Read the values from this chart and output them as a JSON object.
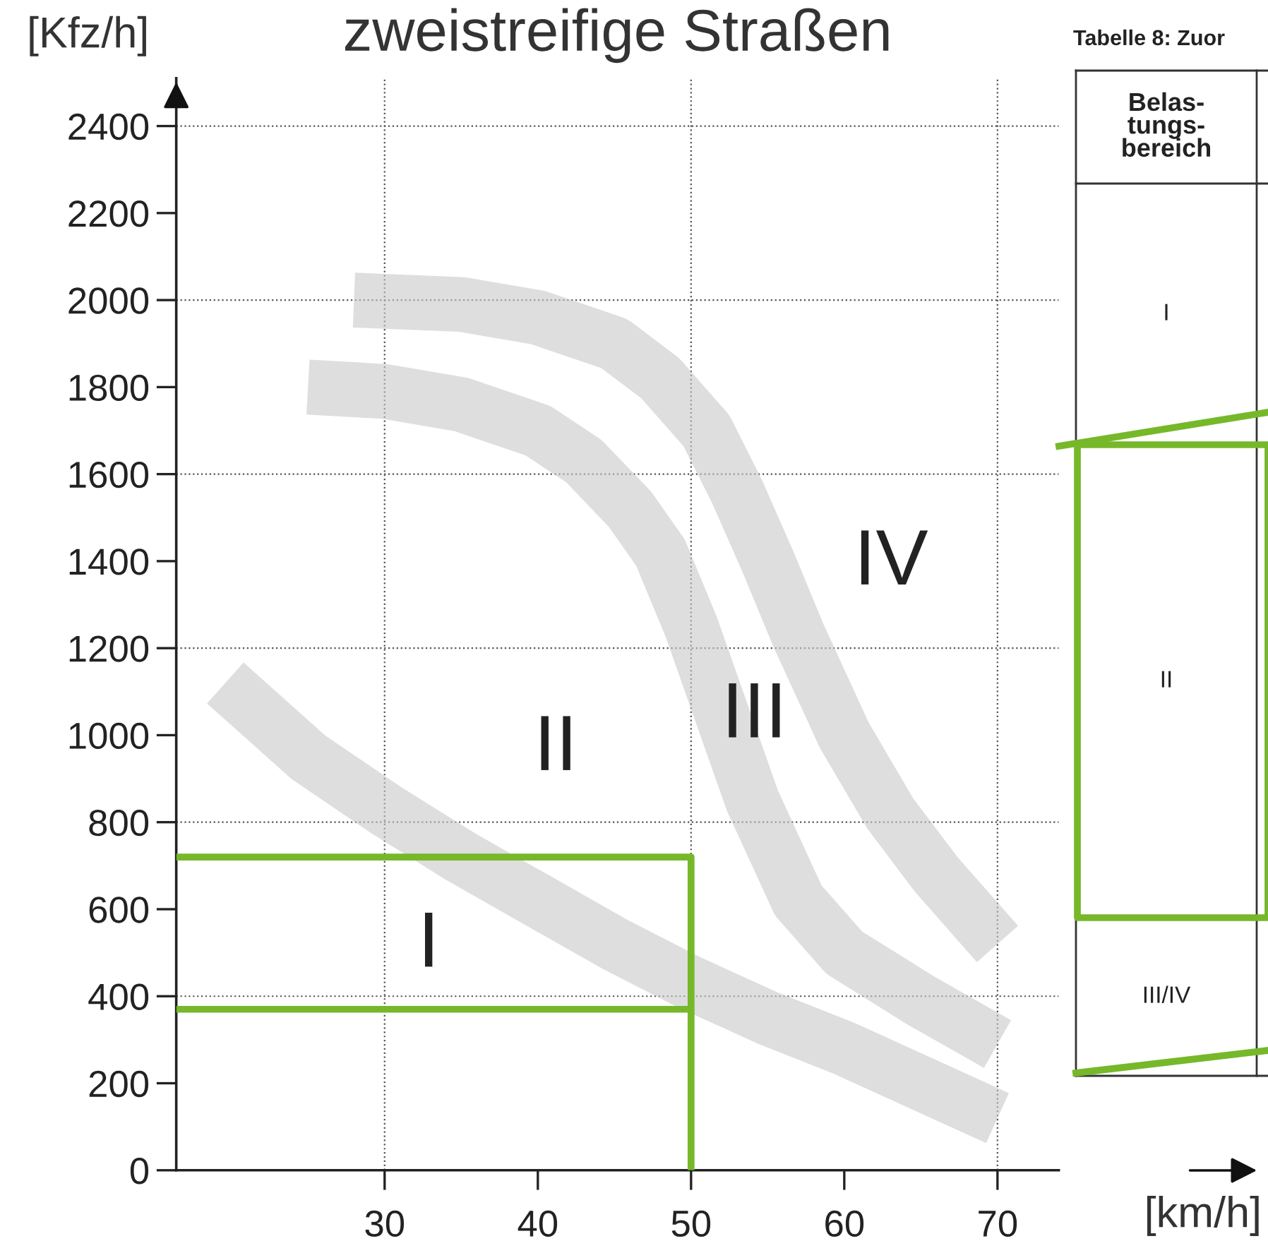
{
  "chart_data": {
    "type": "line",
    "title": "zweistreifige Straßen",
    "xlabel": "[km/h]",
    "ylabel": "[Kfz/h]",
    "xlim": [
      16.4,
      74
    ],
    "ylim": [
      0,
      2510
    ],
    "xticks": [
      30,
      40,
      50,
      60,
      70
    ],
    "yticks": [
      0,
      200,
      400,
      600,
      800,
      1000,
      1200,
      1400,
      1600,
      1800,
      2000,
      2200,
      2400
    ],
    "grid": false,
    "legend": false,
    "series": [
      {
        "color": "#c8c8c8",
        "x": [
          19.6,
          25,
          30,
          35,
          40,
          45,
          50,
          55,
          60,
          65,
          70
        ],
        "values": [
          1120,
          950,
          830,
          720,
          620,
          520,
          430,
          350,
          280,
          200,
          120
        ]
      },
      {
        "color": "#c8c8c8",
        "x": [
          25,
          30,
          35,
          40,
          43,
          46,
          48,
          50,
          52,
          54,
          57,
          60,
          65,
          70
        ],
        "values": [
          1800,
          1790,
          1760,
          1700,
          1630,
          1520,
          1420,
          1250,
          1050,
          850,
          620,
          500,
          390,
          290
        ]
      },
      {
        "color": "#c8c8c8",
        "x": [
          28,
          35,
          40,
          45,
          48,
          51,
          53,
          55,
          57,
          60,
          63,
          66,
          70
        ],
        "values": [
          2000,
          1990,
          1960,
          1900,
          1820,
          1700,
          1560,
          1400,
          1230,
          1000,
          820,
          680,
          520
        ]
      },
      {
        "color": "#76b82a",
        "x": [
          16.4,
          50,
          50
        ],
        "values": [
          720,
          720,
          0
        ]
      },
      {
        "color": "#76b82a",
        "x": [
          16.4,
          50
        ],
        "values": [
          370,
          370
        ]
      }
    ],
    "ref_lines": [
      {
        "axis": "x",
        "value": 30,
        "color": "#555555",
        "line_style": "dotted"
      },
      {
        "axis": "x",
        "value": 50,
        "color": "#555555",
        "line_style": "dotted"
      },
      {
        "axis": "x",
        "value": 70,
        "color": "#555555",
        "line_style": "dotted"
      },
      {
        "axis": "y",
        "value": 400,
        "color": "#555555",
        "line_style": "dotted"
      },
      {
        "axis": "y",
        "value": 800,
        "color": "#555555",
        "line_style": "dotted"
      },
      {
        "axis": "y",
        "value": 1200,
        "color": "#555555",
        "line_style": "dotted"
      },
      {
        "axis": "y",
        "value": 1600,
        "color": "#555555",
        "line_style": "dotted"
      },
      {
        "axis": "y",
        "value": 2000,
        "color": "#555555",
        "line_style": "dotted"
      },
      {
        "axis": "y",
        "value": 2400,
        "color": "#555555",
        "line_style": "dotted"
      }
    ],
    "annotations": [
      "I",
      "II",
      "III",
      "IV",
      "Tabelle 8: Zuor",
      "Belas-\ntungs-\nbereich",
      "I",
      "II",
      "III/IV"
    ]
  }
}
